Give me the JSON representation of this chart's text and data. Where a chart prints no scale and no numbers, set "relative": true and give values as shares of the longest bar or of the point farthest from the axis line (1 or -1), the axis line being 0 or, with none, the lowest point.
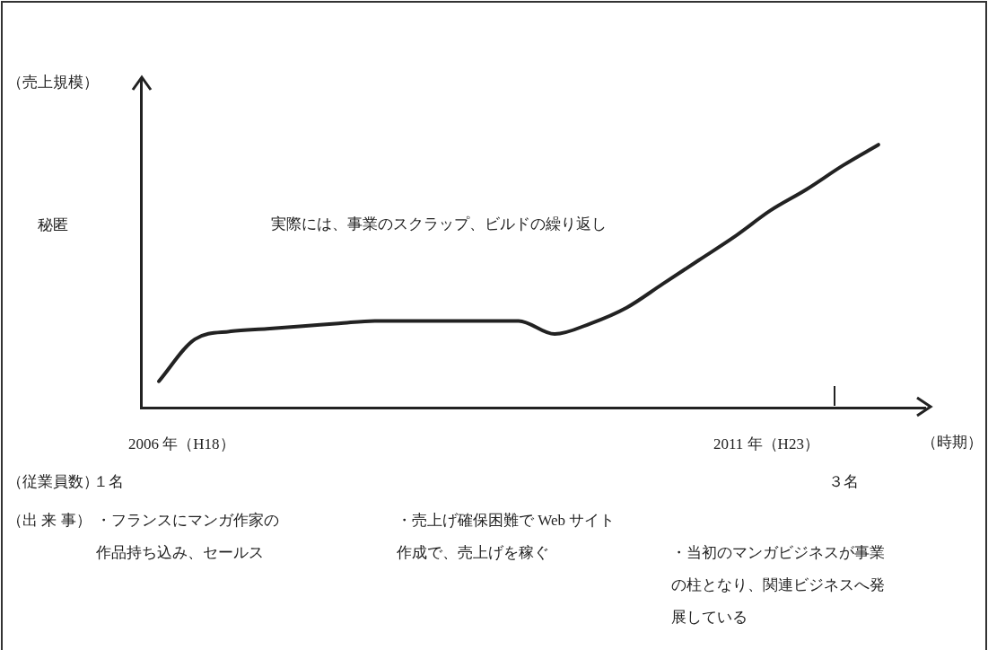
{
  "chart_data": {
    "type": "line",
    "relative": true,
    "ylabel": "（売上規模）",
    "xlabel": "（時期）",
    "categories": [
      null,
      null,
      null,
      null,
      null,
      null,
      null,
      null,
      null,
      null,
      null,
      null,
      null,
      null,
      null,
      null,
      null,
      null,
      null,
      null,
      null
    ],
    "series": [
      {
        "color": "#222222",
        "values": [
          0.1,
          0.26,
          0.29,
          0.3,
          0.31,
          0.32,
          0.33,
          0.33,
          0.33,
          0.33,
          0.33,
          0.28,
          0.32,
          0.38,
          0.47,
          0.56,
          0.65,
          0.75,
          0.83,
          0.92,
          1.0
        ]
      }
    ],
    "marker": "none",
    "grid": false,
    "legend": false,
    "annotations": [
      "秘匿",
      "実際には、事業のスクラップ、ビルドの繰り返し",
      "2006 年（H18）",
      "2011 年（H23）",
      "（従業員数）",
      "１名",
      "３名",
      "（出 来 事）",
      "・フランスにマンガ作家の作品持ち込み、セールス",
      "・売上げ確保困難で Web サイト作成で、売上げを稼ぐ",
      "・当初のマンガビジネスが事業の柱となり、関連ビジネスへ発展している"
    ]
  }
}
